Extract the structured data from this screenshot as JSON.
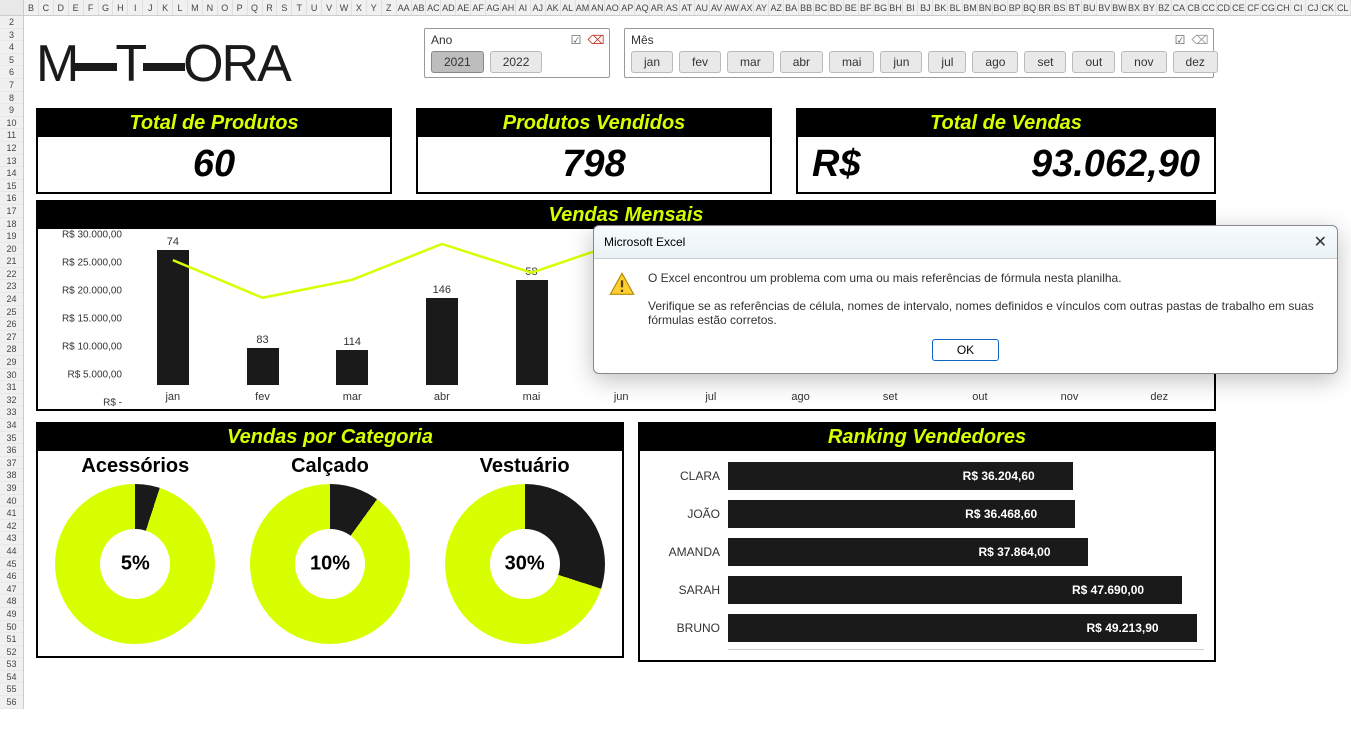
{
  "columns": [
    "B",
    "C",
    "D",
    "E",
    "F",
    "G",
    "H",
    "I",
    "J",
    "K",
    "L",
    "M",
    "N",
    "O",
    "P",
    "Q",
    "R",
    "S",
    "T",
    "U",
    "V",
    "W",
    "X",
    "Y",
    "Z",
    "AA",
    "AB",
    "AC",
    "AD",
    "AE",
    "AF",
    "AG",
    "AH",
    "AI",
    "AJ",
    "AK",
    "AL",
    "AM",
    "AN",
    "AO",
    "AP",
    "AQ",
    "AR",
    "AS",
    "AT",
    "AU",
    "AV",
    "AW",
    "AX",
    "AY",
    "AZ",
    "BA",
    "BB",
    "BC",
    "BD",
    "BE",
    "BF",
    "BG",
    "BH",
    "BI",
    "BJ",
    "BK",
    "BL",
    "BM",
    "BN",
    "BO",
    "BP",
    "BQ",
    "BR",
    "BS",
    "BT",
    "BU",
    "BV",
    "BW",
    "BX",
    "BY",
    "BZ",
    "CA",
    "CB",
    "CC",
    "CD",
    "CE",
    "CF",
    "CG",
    "CH",
    "CI",
    "CJ",
    "CK",
    "CL"
  ],
  "row_count": 56,
  "logo_text": "METEORA",
  "slicer_year": {
    "title": "Ano",
    "options": [
      "2021",
      "2022"
    ],
    "selected": "2021"
  },
  "slicer_month": {
    "title": "Mês",
    "options": [
      "jan",
      "fev",
      "mar",
      "abr",
      "mai",
      "jun",
      "jul",
      "ago",
      "set",
      "out",
      "nov",
      "dez"
    ]
  },
  "kpi": {
    "produtos": {
      "title": "Total de Produtos",
      "value": "60"
    },
    "vendidos": {
      "title": "Produtos Vendidos",
      "value": "798"
    },
    "vendas": {
      "title": "Total de Vendas",
      "currency": "R$",
      "value": "93.062,90"
    }
  },
  "monthly": {
    "title": "Vendas Mensais",
    "y_labels": [
      "R$ 30.000,00",
      "R$ 25.000,00",
      "R$ 20.000,00",
      "R$ 15.000,00",
      "R$ 10.000,00",
      "R$ 5.000,00",
      "R$ -"
    ],
    "y_max": 30000,
    "categories": [
      "jan",
      "fev",
      "mar",
      "abr",
      "mai",
      "jun",
      "jul",
      "ago",
      "set",
      "out",
      "nov",
      "dez"
    ],
    "bar_values": [
      27000,
      7500,
      7000,
      17500,
      21000,
      0,
      0,
      0,
      0,
      0,
      0,
      0
    ],
    "data_labels": [
      "74",
      "83",
      "114",
      "146",
      "58",
      "",
      "",
      "",
      "",
      "",
      "",
      ""
    ],
    "line_values": [
      23000,
      12500,
      17500,
      27500,
      19500,
      28000,
      0,
      0,
      0,
      0,
      0,
      0
    ],
    "line_cut_index": 5,
    "bar_color": "#1a1a1a",
    "line_color": "#d8ff00"
  },
  "categories_panel": {
    "title": "Vendas por Categoria",
    "donuts": [
      {
        "label": "Acessórios",
        "pct": 5,
        "pct_text": "5%"
      },
      {
        "label": "Calçado",
        "pct": 10,
        "pct_text": "10%"
      },
      {
        "label": "Vestuário",
        "pct": 30,
        "pct_text": "30%"
      }
    ],
    "fg_color": "#1a1a1a",
    "bg_color": "#d8ff00"
  },
  "ranking": {
    "title": "Ranking Vendedores",
    "max": 50000,
    "rows": [
      {
        "name": "CLARA",
        "value": 36204.6,
        "label": "R$ 36.204,60"
      },
      {
        "name": "JOÃO",
        "value": 36468.6,
        "label": "R$ 36.468,60"
      },
      {
        "name": "AMANDA",
        "value": 37864.0,
        "label": "R$ 37.864,00"
      },
      {
        "name": "SARAH",
        "value": 47690.0,
        "label": "R$ 47.690,00"
      },
      {
        "name": "BRUNO",
        "value": 49213.9,
        "label": "R$ 49.213,90"
      }
    ],
    "bar_color": "#1a1a1a",
    "text_color": "#ffffff"
  },
  "dialog": {
    "title": "Microsoft Excel",
    "line1": "O Excel encontrou um problema com uma ou mais referências de fórmula nesta planilha.",
    "line2": "Verifique se as referências de célula, nomes de intervalo, nomes definidos e vínculos com outras pastas de trabalho em suas fórmulas estão corretos.",
    "ok": "OK"
  },
  "colors": {
    "accent": "#d8ff00",
    "panel_header_bg": "#000000"
  }
}
